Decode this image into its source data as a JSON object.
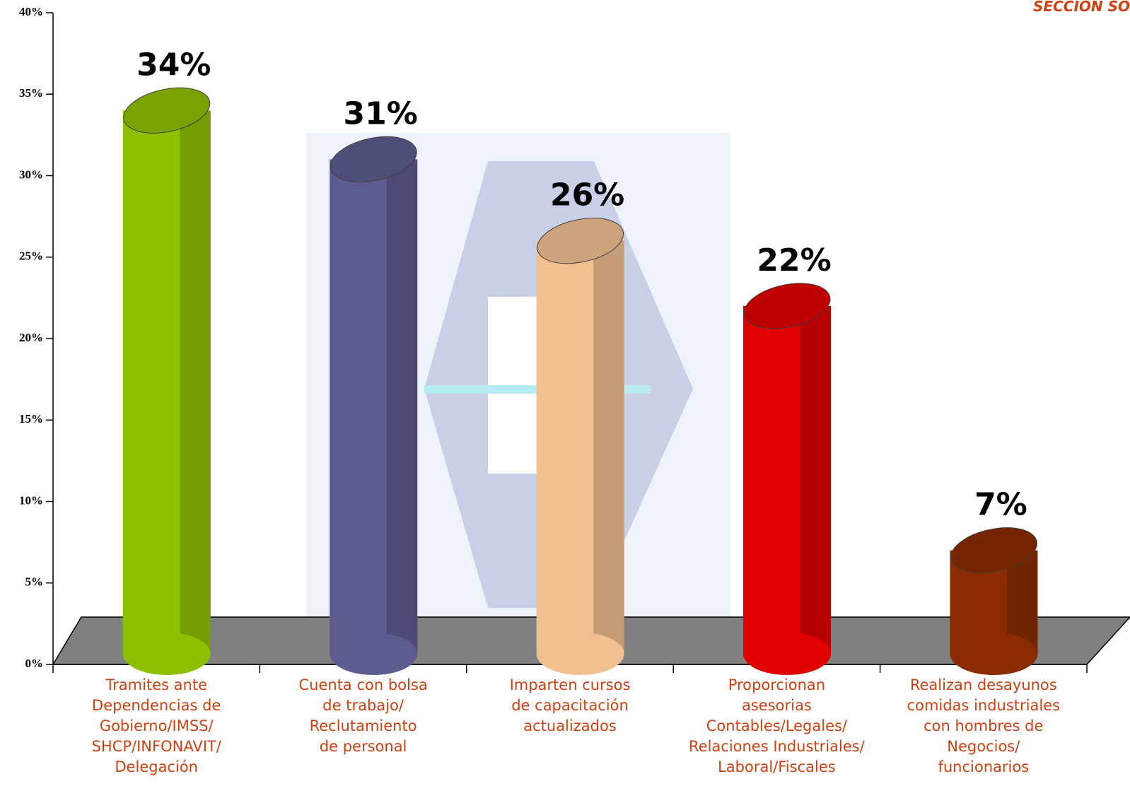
{
  "chart_data": {
    "type": "bar",
    "title": "SECCION SO",
    "categories": [
      [
        "Tramites ante",
        "Dependencias de",
        "Gobierno/IMSS/",
        "SHCP/INFONAVIT/",
        "Delegación"
      ],
      [
        "Cuenta con bolsa",
        "de trabajo/",
        "Reclutamiento",
        "de personal"
      ],
      [
        "Imparten cursos",
        "de capacitación",
        "actualizados"
      ],
      [
        "Proporcionan",
        "asesorias",
        "Contables/Legales/",
        "Relaciones Industriales/",
        "Laboral/Fiscales"
      ],
      [
        "Realizan desayunos",
        "comidas industriales",
        "con hombres de",
        "Negocios/",
        "funcionarios"
      ]
    ],
    "values": [
      34,
      31,
      26,
      22,
      7
    ],
    "value_labels": [
      "34%",
      "31%",
      "26%",
      "22%",
      "7%"
    ],
    "colors": [
      "#8dc000",
      "#5c5c90",
      "#f0c090",
      "#e00000",
      "#8a2c00"
    ],
    "ylim": [
      0,
      40
    ],
    "yticks": [
      {
        "value": 0,
        "label": "0%"
      },
      {
        "value": 5,
        "label": "5%"
      },
      {
        "value": 10,
        "label": "10%"
      },
      {
        "value": 15,
        "label": "15%"
      },
      {
        "value": 20,
        "label": "20%"
      },
      {
        "value": 25,
        "label": "25%"
      },
      {
        "value": 30,
        "label": "30%"
      },
      {
        "value": 35,
        "label": "35%"
      },
      {
        "value": 40,
        "label": "40%"
      }
    ]
  }
}
